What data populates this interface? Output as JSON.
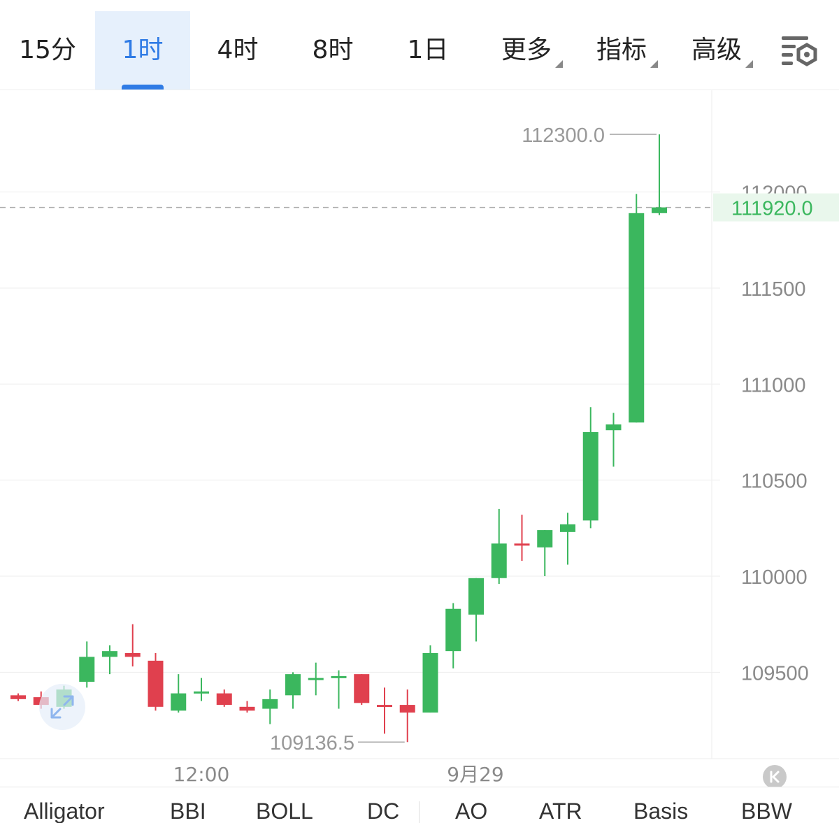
{
  "toolbar": {
    "tabs": [
      {
        "label": "15分",
        "active": false
      },
      {
        "label": "1时",
        "active": true
      },
      {
        "label": "4时",
        "active": false
      },
      {
        "label": "8时",
        "active": false
      },
      {
        "label": "1日",
        "active": false
      }
    ],
    "dropdowns": [
      {
        "label": "更多"
      },
      {
        "label": "指标"
      },
      {
        "label": "高级"
      }
    ],
    "settings_icon": "chart-settings-icon"
  },
  "chart_data": {
    "type": "candlestick",
    "y_ticks": [
      109500,
      110000,
      110500,
      111000,
      111500,
      112000
    ],
    "y_tick_labels": [
      "109500",
      "110000",
      "110500",
      "111000",
      "111500",
      "112000"
    ],
    "ylim": [
      109050,
      112530
    ],
    "x_tick_labels": [
      "12:00",
      "9月29"
    ],
    "current_price": 111920.0,
    "current_price_label": "111920.0",
    "high_annotation": {
      "label": "112300.0",
      "value": 112300.0
    },
    "low_annotation": {
      "label": "109136.5",
      "value": 109136.5
    },
    "colors": {
      "up": "#3bb75e",
      "down": "#e0404e",
      "grid": "#ededed",
      "axis_text": "#8a8a8a",
      "price_text": "#3bb75e",
      "price_bg": "#e9f7ec",
      "accent": "#2f7be5"
    },
    "candles": [
      {
        "open": 109380,
        "close": 109360,
        "high": 109390,
        "low": 109350
      },
      {
        "open": 109370,
        "close": 109330,
        "high": 109400,
        "low": 109310
      },
      {
        "open": 109320,
        "close": 109410,
        "high": 109430,
        "low": 109310
      },
      {
        "open": 109450,
        "close": 109580,
        "high": 109660,
        "low": 109420
      },
      {
        "open": 109580,
        "close": 109610,
        "high": 109640,
        "low": 109490
      },
      {
        "open": 109600,
        "close": 109580,
        "high": 109750,
        "low": 109530
      },
      {
        "open": 109560,
        "close": 109320,
        "high": 109600,
        "low": 109300
      },
      {
        "open": 109300,
        "close": 109390,
        "high": 109490,
        "low": 109290
      },
      {
        "open": 109400,
        "close": 109400,
        "high": 109470,
        "low": 109350
      },
      {
        "open": 109390,
        "close": 109330,
        "high": 109410,
        "low": 109320
      },
      {
        "open": 109320,
        "close": 109300,
        "high": 109350,
        "low": 109290
      },
      {
        "open": 109310,
        "close": 109360,
        "high": 109410,
        "low": 109230
      },
      {
        "open": 109380,
        "close": 109490,
        "high": 109500,
        "low": 109310
      },
      {
        "open": 109470,
        "close": 109470,
        "high": 109550,
        "low": 109380
      },
      {
        "open": 109470,
        "close": 109480,
        "high": 109510,
        "low": 109310
      },
      {
        "open": 109490,
        "close": 109340,
        "high": 109490,
        "low": 109330
      },
      {
        "open": 109330,
        "close": 109320,
        "high": 109420,
        "low": 109180
      },
      {
        "open": 109330,
        "close": 109290,
        "high": 109410,
        "low": 109136.5
      },
      {
        "open": 109290,
        "close": 109600,
        "high": 109640,
        "low": 109290
      },
      {
        "open": 109610,
        "close": 109830,
        "high": 109860,
        "low": 109520
      },
      {
        "open": 109800,
        "close": 109990,
        "high": 109990,
        "low": 109660
      },
      {
        "open": 109990,
        "close": 110170,
        "high": 110350,
        "low": 109960
      },
      {
        "open": 110170,
        "close": 110160,
        "high": 110320,
        "low": 110080
      },
      {
        "open": 110150,
        "close": 110240,
        "high": 110240,
        "low": 110000
      },
      {
        "open": 110230,
        "close": 110270,
        "high": 110330,
        "low": 110060
      },
      {
        "open": 110290,
        "close": 110750,
        "high": 110880,
        "low": 110250
      },
      {
        "open": 110760,
        "close": 110790,
        "high": 110850,
        "low": 110570
      },
      {
        "open": 110800,
        "close": 111890,
        "high": 111990,
        "low": 110800
      },
      {
        "open": 111890,
        "close": 111920,
        "high": 112300,
        "low": 111880
      }
    ]
  },
  "controls": {
    "expand_icon": "expand-arrows-icon",
    "collapse_label": "K"
  },
  "indicators": {
    "main": [
      "Alligator",
      "BBI",
      "BOLL",
      "DC"
    ],
    "sub": [
      "AO",
      "ATR",
      "Basis",
      "BBW"
    ]
  }
}
